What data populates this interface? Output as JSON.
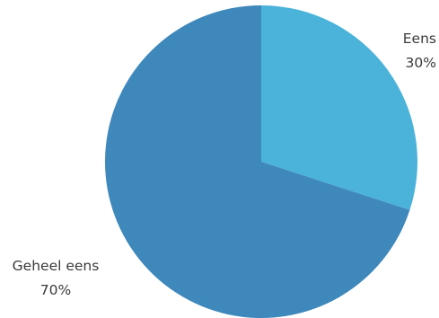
{
  "chart_data": {
    "type": "pie",
    "categories": [
      "Eens",
      "Geheel eens"
    ],
    "values": [
      30,
      70
    ],
    "value_labels": [
      "30%",
      "70%"
    ],
    "colors": [
      "#4bb3d9",
      "#3f88bc"
    ],
    "start_angle_deg": 0,
    "direction": "clockwise",
    "legend": "none",
    "grid": false
  }
}
